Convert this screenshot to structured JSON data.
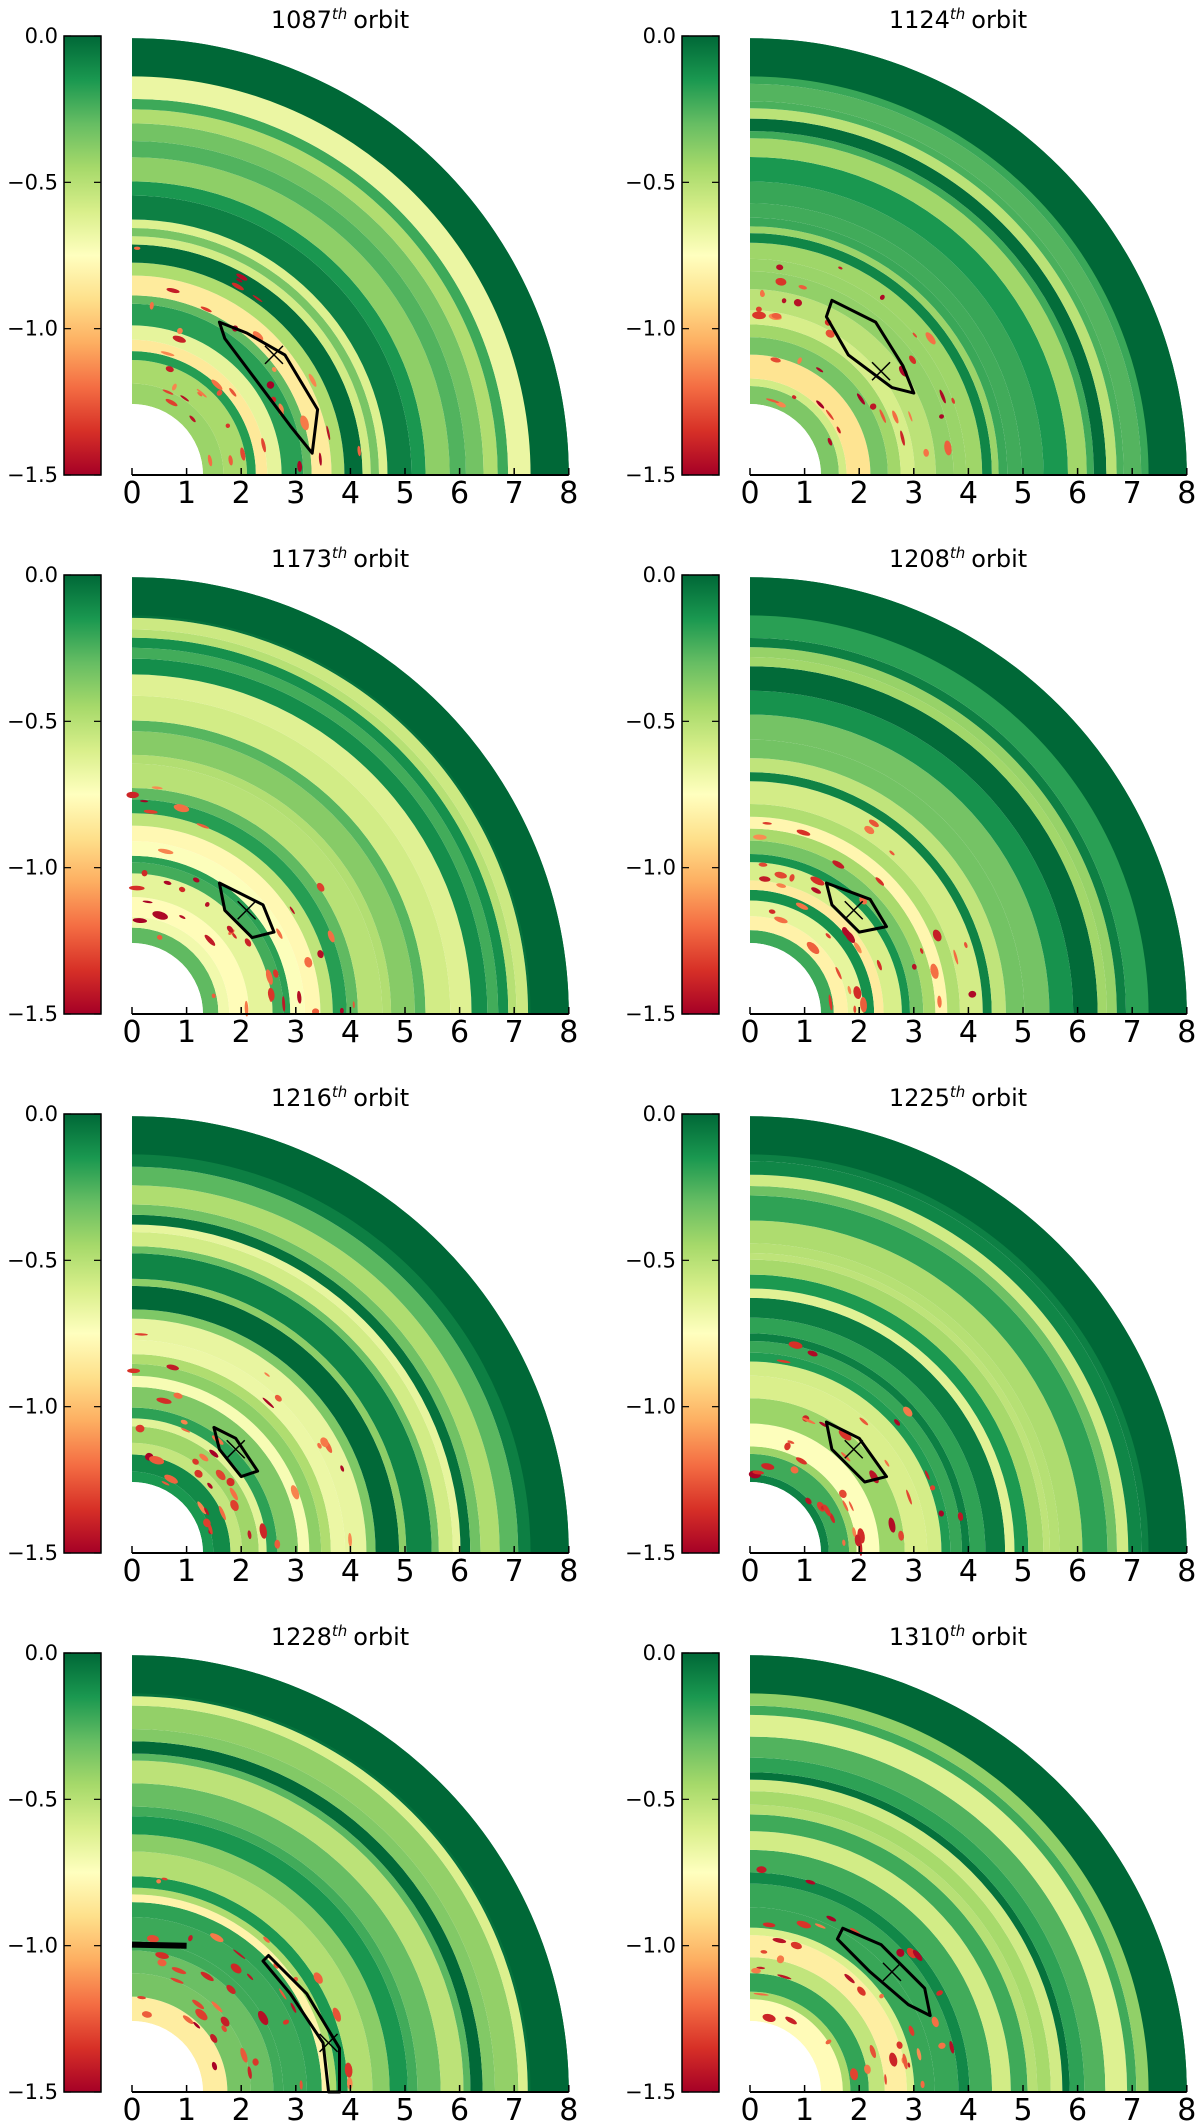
{
  "colors": {
    "colormap_low": "#a50026",
    "colormap_mid": "#ffffbf",
    "colormap_high": "#006837",
    "contour": "#000000",
    "background": "#ffffff"
  },
  "chart_data": [
    {
      "type": "heatmap",
      "title_number": "1087",
      "title_sup": "th",
      "title_suffix": "orbit",
      "x_ticks": [
        "0",
        "1",
        "2",
        "3",
        "4",
        "5",
        "6",
        "7",
        "8"
      ],
      "xlim": [
        0,
        8
      ],
      "colorbar_ticks": [
        "0.0",
        "−0.5",
        "−1.0",
        "−1.5"
      ],
      "clim": [
        -1.5,
        0.0
      ],
      "colormap": "RdYlGn",
      "marker": {
        "x": 2.6,
        "y": 2.2
      },
      "contour": [
        [
          1.6,
          2.8
        ],
        [
          2.1,
          2.6
        ],
        [
          2.8,
          2.2
        ],
        [
          3.4,
          1.2
        ],
        [
          3.3,
          0.4
        ],
        [
          2.9,
          0.9
        ],
        [
          2.3,
          1.7
        ],
        [
          1.7,
          2.5
        ]
      ]
    },
    {
      "type": "heatmap",
      "title_number": "1124",
      "title_sup": "th",
      "title_suffix": "orbit",
      "x_ticks": [
        "0",
        "1",
        "2",
        "3",
        "4",
        "5",
        "6",
        "7",
        "8"
      ],
      "xlim": [
        0,
        8
      ],
      "colorbar_ticks": [
        "0.0",
        "−0.5",
        "−1.0",
        "−1.5"
      ],
      "clim": [
        -1.5,
        0.0
      ],
      "colormap": "RdYlGn",
      "marker": {
        "x": 2.4,
        "y": 1.9
      },
      "contour": [
        [
          1.5,
          3.2
        ],
        [
          2.3,
          2.8
        ],
        [
          2.8,
          2.0
        ],
        [
          3.0,
          1.5
        ],
        [
          2.6,
          1.6
        ],
        [
          1.8,
          2.2
        ],
        [
          1.4,
          2.9
        ]
      ]
    },
    {
      "type": "heatmap",
      "title_number": "1173",
      "title_sup": "th",
      "title_suffix": "orbit",
      "x_ticks": [
        "0",
        "1",
        "2",
        "3",
        "4",
        "5",
        "6",
        "7",
        "8"
      ],
      "xlim": [
        0,
        8
      ],
      "colorbar_ticks": [
        "0.0",
        "−0.5",
        "−1.0",
        "−1.5"
      ],
      "clim": [
        -1.5,
        0.0
      ],
      "colormap": "RdYlGn",
      "marker": {
        "x": 2.1,
        "y": 1.9
      },
      "contour": [
        [
          1.6,
          2.4
        ],
        [
          2.4,
          2.0
        ],
        [
          2.6,
          1.5
        ],
        [
          2.2,
          1.4
        ],
        [
          1.7,
          1.9
        ]
      ]
    },
    {
      "type": "heatmap",
      "title_number": "1208",
      "title_sup": "th",
      "title_suffix": "orbit",
      "x_ticks": [
        "0",
        "1",
        "2",
        "3",
        "4",
        "5",
        "6",
        "7",
        "8"
      ],
      "xlim": [
        0,
        8
      ],
      "colorbar_ticks": [
        "0.0",
        "−0.5",
        "−1.0",
        "−1.5"
      ],
      "clim": [
        -1.5,
        0.0
      ],
      "colormap": "RdYlGn",
      "marker": {
        "x": 1.9,
        "y": 1.9
      },
      "contour": [
        [
          1.4,
          2.4
        ],
        [
          2.2,
          2.1
        ],
        [
          2.5,
          1.6
        ],
        [
          2.0,
          1.5
        ],
        [
          1.5,
          2.0
        ]
      ]
    },
    {
      "type": "heatmap",
      "title_number": "1216",
      "title_sup": "th",
      "title_suffix": "orbit",
      "x_ticks": [
        "0",
        "1",
        "2",
        "3",
        "4",
        "5",
        "6",
        "7",
        "8"
      ],
      "xlim": [
        0,
        8
      ],
      "colorbar_ticks": [
        "0.0",
        "−0.5",
        "−1.0",
        "−1.5"
      ],
      "clim": [
        -1.5,
        0.0
      ],
      "colormap": "RdYlGn",
      "marker": {
        "x": 1.9,
        "y": 1.9
      },
      "contour": [
        [
          1.5,
          2.3
        ],
        [
          1.9,
          2.1
        ],
        [
          2.3,
          1.5
        ],
        [
          2.0,
          1.4
        ],
        [
          1.6,
          1.9
        ]
      ]
    },
    {
      "type": "heatmap",
      "title_number": "1225",
      "title_sup": "th",
      "title_suffix": "orbit",
      "x_ticks": [
        "0",
        "1",
        "2",
        "3",
        "4",
        "5",
        "6",
        "7",
        "8"
      ],
      "xlim": [
        0,
        8
      ],
      "colorbar_ticks": [
        "0.0",
        "−0.5",
        "−1.0",
        "−1.5"
      ],
      "clim": [
        -1.5,
        0.0
      ],
      "colormap": "RdYlGn",
      "marker": {
        "x": 1.9,
        "y": 1.9
      },
      "contour": [
        [
          1.4,
          2.4
        ],
        [
          2.0,
          2.1
        ],
        [
          2.5,
          1.4
        ],
        [
          2.1,
          1.3
        ],
        [
          1.5,
          1.9
        ]
      ]
    },
    {
      "type": "heatmap",
      "title_number": "1228",
      "title_sup": "th",
      "title_suffix": "orbit",
      "x_ticks": [
        "0",
        "1",
        "2",
        "3",
        "4",
        "5",
        "6",
        "7",
        "8"
      ],
      "xlim": [
        0,
        8
      ],
      "colorbar_ticks": [
        "0.0",
        "−0.5",
        "−1.0",
        "−1.5"
      ],
      "clim": [
        -1.5,
        0.0
      ],
      "colormap": "RdYlGn",
      "marker": {
        "x": 3.6,
        "y": 0.9
      },
      "contour": [
        [
          2.5,
          2.5
        ],
        [
          3.2,
          1.8
        ],
        [
          3.8,
          0.8
        ],
        [
          3.8,
          0.0
        ],
        [
          3.6,
          0.0
        ],
        [
          3.5,
          0.9
        ],
        [
          2.9,
          1.8
        ],
        [
          2.4,
          2.4
        ]
      ],
      "contour2": [
        [
          0.0,
          2.7
        ],
        [
          1.0,
          2.68
        ]
      ]
    },
    {
      "type": "heatmap",
      "title_number": "1310",
      "title_sup": "th",
      "title_suffix": "orbit",
      "x_ticks": [
        "0",
        "1",
        "2",
        "3",
        "4",
        "5",
        "6",
        "7",
        "8"
      ],
      "xlim": [
        0,
        8
      ],
      "colorbar_ticks": [
        "0.0",
        "−0.5",
        "−1.0",
        "−1.5"
      ],
      "clim": [
        -1.5,
        0.0
      ],
      "colormap": "RdYlGn",
      "marker": {
        "x": 2.6,
        "y": 2.2
      },
      "contour": [
        [
          1.7,
          3.0
        ],
        [
          2.4,
          2.7
        ],
        [
          3.2,
          1.9
        ],
        [
          3.3,
          1.4
        ],
        [
          2.9,
          1.6
        ],
        [
          2.2,
          2.2
        ],
        [
          1.6,
          2.8
        ]
      ]
    }
  ]
}
